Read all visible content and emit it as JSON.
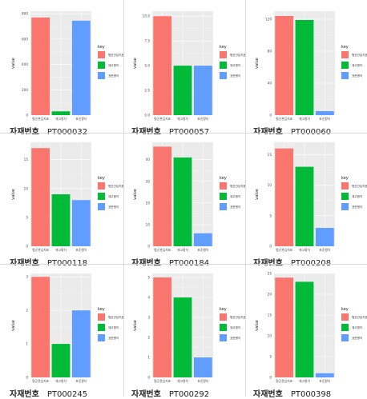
{
  "caption_label": "자재번호",
  "axis_label": "value",
  "legend_title": "key",
  "categories": [
    "평균관입지표",
    "재고평차",
    "표준평차"
  ],
  "legend_entries": [
    "평균관입지표",
    "재고평차",
    "표준평차"
  ],
  "colors": [
    "#F8766D",
    "#00BA38",
    "#619CFF"
  ],
  "chart_data": [
    {
      "type": "bar",
      "id": "PT000032",
      "categories": [
        "평균관입지표",
        "재고평차",
        "표준평차"
      ],
      "values": [
        770,
        30,
        745
      ],
      "ylim": [
        0,
        820
      ],
      "yticks": [
        0,
        200,
        400,
        600,
        800
      ]
    },
    {
      "type": "bar",
      "id": "PT000057",
      "categories": [
        "평균관입지표",
        "재고평차",
        "표준평차"
      ],
      "values": [
        10,
        5,
        5
      ],
      "ylim": [
        0,
        10.5
      ],
      "yticks": [
        "0.0",
        "2.5",
        "5.0",
        "7.5",
        "10.0"
      ]
    },
    {
      "type": "bar",
      "id": "PT000060",
      "categories": [
        "평균관입지표",
        "재고평차",
        "표준평차"
      ],
      "values": [
        124,
        119,
        5
      ],
      "ylim": [
        0,
        130
      ],
      "yticks": [
        0,
        40,
        80,
        120
      ]
    },
    {
      "type": "bar",
      "id": "PT000118",
      "categories": [
        "평균관입지표",
        "재고평차",
        "표준평차"
      ],
      "values": [
        17,
        9,
        8
      ],
      "ylim": [
        0,
        18
      ],
      "yticks": [
        0,
        5,
        10,
        15
      ]
    },
    {
      "type": "bar",
      "id": "PT000184",
      "categories": [
        "평균관입지표",
        "재고평차",
        "표준평차"
      ],
      "values": [
        46,
        41,
        6
      ],
      "ylim": [
        0,
        48
      ],
      "yticks": [
        0,
        10,
        20,
        30,
        40
      ]
    },
    {
      "type": "bar",
      "id": "PT000208",
      "categories": [
        "평균관입지표",
        "재고평차",
        "표준평차"
      ],
      "values": [
        16,
        13,
        3
      ],
      "ylim": [
        0,
        17
      ],
      "yticks": [
        0,
        5,
        10,
        15
      ]
    },
    {
      "type": "bar",
      "id": "PT000245",
      "categories": [
        "평균관입지표",
        "재고평차",
        "표준평차"
      ],
      "values": [
        3,
        1,
        2
      ],
      "ylim": [
        0,
        3.1
      ],
      "yticks": [
        0,
        1,
        2,
        3
      ]
    },
    {
      "type": "bar",
      "id": "PT000292",
      "categories": [
        "평균관입지표",
        "재고평차",
        "표준평차"
      ],
      "values": [
        5,
        4,
        1
      ],
      "ylim": [
        0,
        5.2
      ],
      "yticks": [
        0,
        1,
        2,
        3,
        4,
        5
      ]
    },
    {
      "type": "bar",
      "id": "PT000398",
      "categories": [
        "평균관입지표",
        "재고평차",
        "표준평차"
      ],
      "values": [
        24,
        23,
        1
      ],
      "ylim": [
        0,
        25
      ],
      "yticks": [
        0,
        5,
        10,
        15,
        20,
        25
      ]
    }
  ]
}
